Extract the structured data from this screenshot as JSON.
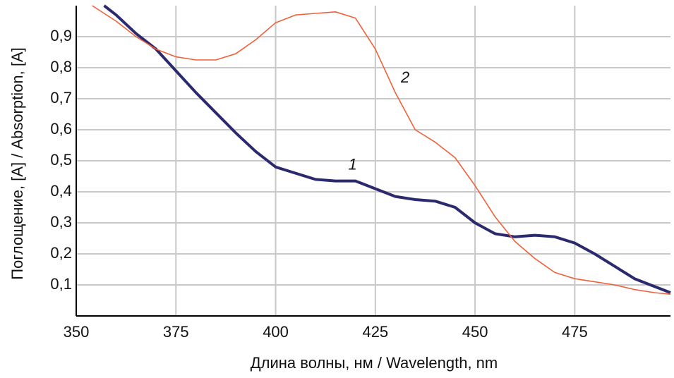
{
  "chart_data": {
    "type": "line",
    "xlabel": "Длина волны, нм / Wavelength, nm",
    "ylabel": "Поглощение, [A] / Absorption, [A]",
    "xlim": [
      350,
      499
    ],
    "ylim": [
      0,
      1
    ],
    "xticks": [
      350,
      375,
      400,
      425,
      450,
      475
    ],
    "yticks": [
      {
        "value": 0.1,
        "label": "0,1"
      },
      {
        "value": 0.2,
        "label": "0,2"
      },
      {
        "value": 0.3,
        "label": "0,3"
      },
      {
        "value": 0.4,
        "label": "0,4"
      },
      {
        "value": 0.5,
        "label": "0,5"
      },
      {
        "value": 0.6,
        "label": "0,6"
      },
      {
        "value": 0.7,
        "label": "0,7"
      },
      {
        "value": 0.8,
        "label": "0,8"
      },
      {
        "value": 0.9,
        "label": "0,9"
      }
    ],
    "grid": true,
    "series": [
      {
        "name": "1",
        "color": "#2b2a6e",
        "width": 4,
        "x": [
          357,
          360,
          365,
          370,
          375,
          380,
          385,
          390,
          395,
          400,
          405,
          410,
          415,
          420,
          425,
          430,
          435,
          440,
          445,
          450,
          455,
          460,
          465,
          470,
          475,
          480,
          485,
          490,
          495,
          499
        ],
        "values": [
          1.0,
          0.97,
          0.91,
          0.86,
          0.79,
          0.72,
          0.655,
          0.59,
          0.53,
          0.48,
          0.46,
          0.44,
          0.435,
          0.435,
          0.41,
          0.385,
          0.375,
          0.37,
          0.35,
          0.3,
          0.265,
          0.255,
          0.26,
          0.255,
          0.235,
          0.2,
          0.16,
          0.12,
          0.095,
          0.075
        ]
      },
      {
        "name": "2",
        "color": "#f0603a",
        "width": 1.6,
        "x": [
          354,
          360,
          365,
          370,
          375,
          380,
          385,
          390,
          395,
          400,
          405,
          410,
          415,
          420,
          425,
          430,
          435,
          440,
          445,
          450,
          455,
          460,
          465,
          470,
          475,
          480,
          485,
          490,
          495,
          499
        ],
        "values": [
          1.0,
          0.95,
          0.9,
          0.86,
          0.835,
          0.825,
          0.825,
          0.845,
          0.89,
          0.945,
          0.97,
          0.975,
          0.98,
          0.96,
          0.86,
          0.72,
          0.6,
          0.56,
          0.51,
          0.42,
          0.32,
          0.24,
          0.185,
          0.14,
          0.12,
          0.11,
          0.1,
          0.085,
          0.075,
          0.07
        ]
      }
    ]
  }
}
